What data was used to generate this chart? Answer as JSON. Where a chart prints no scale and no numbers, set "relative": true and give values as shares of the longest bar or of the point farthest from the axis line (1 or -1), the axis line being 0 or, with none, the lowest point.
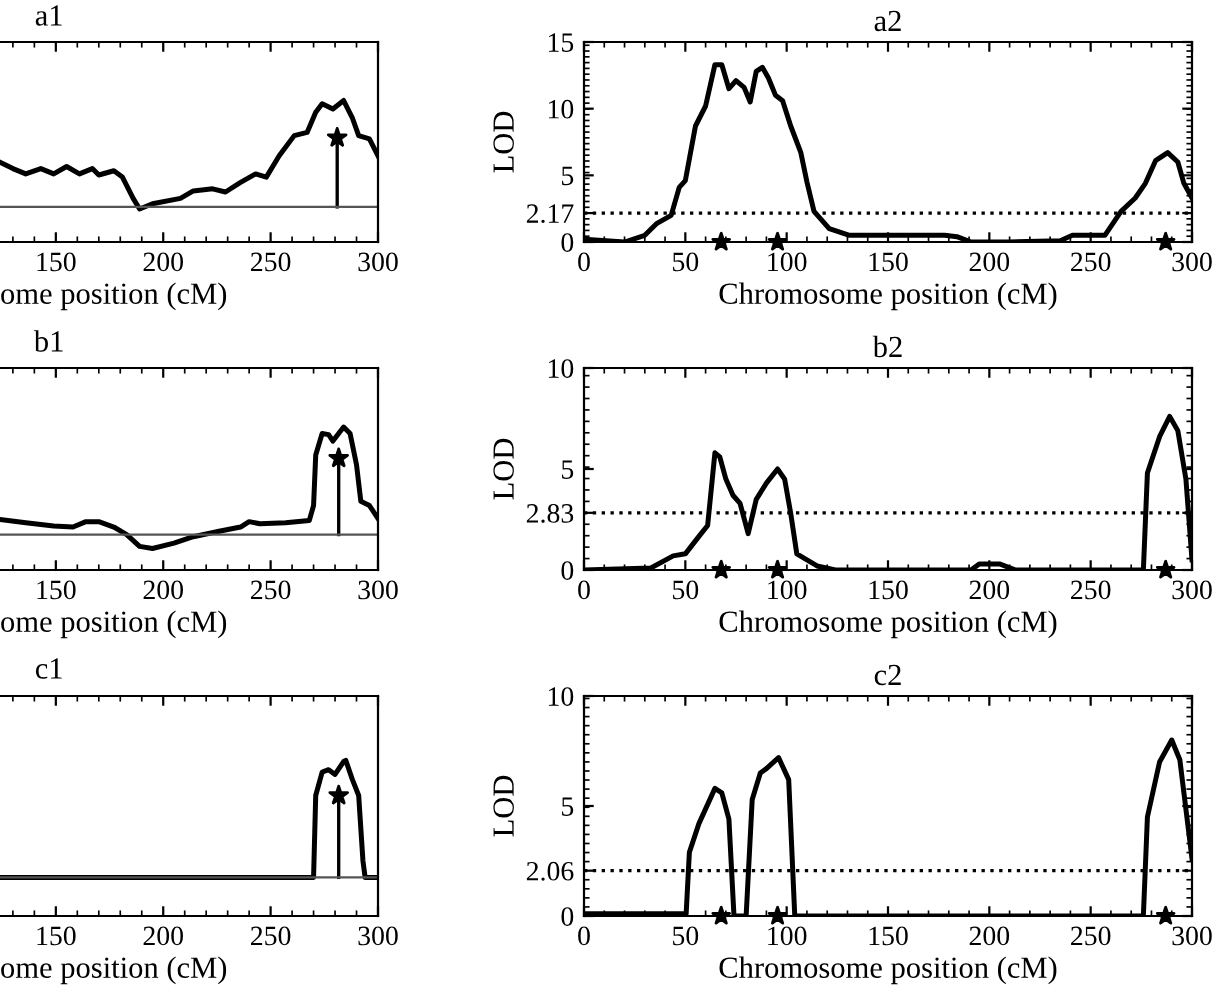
{
  "chart_data": [
    {
      "type": "line",
      "title": "a1",
      "xlabel": "ome position (cM)",
      "relative": true,
      "xlim": [
        124,
        300
      ],
      "xticks": [
        150,
        200,
        250,
        300
      ],
      "tick_labels": "x",
      "series": [
        {
          "type": "line",
          "color": "#000000",
          "x": [
            124,
            130,
            136,
            143,
            149,
            155,
            161,
            167,
            170,
            177,
            181,
            186,
            189,
            195,
            208,
            214,
            223,
            229,
            236,
            243,
            248,
            254,
            261,
            267,
            271,
            274,
            279,
            284,
            288,
            291,
            296,
            300
          ],
          "values": [
            0.42,
            0.36,
            0.31,
            0.36,
            0.31,
            0.38,
            0.31,
            0.36,
            0.3,
            0.34,
            0.28,
            0.08,
            -0.02,
            0.03,
            0.08,
            0.15,
            0.17,
            0.14,
            0.23,
            0.31,
            0.28,
            0.48,
            0.67,
            0.7,
            0.89,
            0.97,
            0.92,
            1.0,
            0.84,
            0.67,
            0.64,
            0.48
          ]
        },
        {
          "type": "lollipop",
          "color": "#000000",
          "marker": "star",
          "x": [
            281
          ],
          "values": [
            0.65
          ]
        }
      ]
    },
    {
      "type": "line",
      "title": "a2",
      "xlabel": "Chromosome position (cM)",
      "ylabel": "LOD",
      "xlim": [
        0,
        300
      ],
      "xticks": [
        0,
        50,
        100,
        150,
        200,
        250,
        300
      ],
      "ylim": [
        0,
        15
      ],
      "yticks": [
        0,
        2.17,
        5,
        10,
        15
      ],
      "ref_lines": [
        {
          "axis": "y",
          "value": 2.17,
          "line_style": "dotted",
          "color": "#000000"
        }
      ],
      "series": [
        {
          "type": "line",
          "color": "#000000",
          "x": [
            0,
            20,
            30,
            36,
            43,
            47,
            50,
            55,
            60,
            64.6,
            68,
            71.5,
            75,
            79,
            82,
            85,
            88,
            91,
            94.5,
            98,
            102,
            107,
            110,
            113.5,
            121,
            131,
            146,
            162,
            178,
            184,
            191,
            210,
            235,
            241,
            257,
            265,
            272,
            277,
            282,
            288,
            293,
            296,
            300
          ],
          "values": [
            0.2,
            0,
            0.5,
            1.4,
            2.0,
            4.1,
            4.6,
            8.7,
            10.2,
            13.3,
            13.3,
            11.5,
            12.1,
            11.6,
            10.5,
            12.8,
            13.1,
            12.3,
            11.0,
            10.6,
            8.7,
            6.7,
            4.5,
            2.3,
            1.0,
            0.5,
            0.5,
            0.5,
            0.5,
            0.4,
            0,
            0,
            0.1,
            0.5,
            0.5,
            2.3,
            3.3,
            4.4,
            6.1,
            6.7,
            6.0,
            4.4,
            3.3
          ]
        },
        {
          "type": "scatter",
          "color": "#000000",
          "marker": "star",
          "x": [
            67.7,
            95.5,
            287
          ],
          "values": [
            0,
            0,
            0
          ]
        }
      ]
    },
    {
      "type": "line",
      "title": "b1",
      "xlabel": "ome position (cM)",
      "relative": true,
      "xlim": [
        124,
        300
      ],
      "xticks": [
        150,
        200,
        250,
        300
      ],
      "tick_labels": "x",
      "series": [
        {
          "type": "line",
          "color": "#000000",
          "x": [
            124,
            136,
            149,
            158,
            164,
            170,
            177,
            183,
            189,
            195,
            205,
            214,
            226,
            236,
            240,
            245,
            257,
            268,
            270,
            271,
            274,
            277,
            279,
            284,
            287,
            290,
            292,
            296,
            300
          ],
          "values": [
            0.14,
            0.11,
            0.08,
            0.07,
            0.12,
            0.12,
            0.07,
            0,
            -0.11,
            -0.13,
            -0.08,
            -0.02,
            0.03,
            0.07,
            0.12,
            0.1,
            0.11,
            0.13,
            0.27,
            0.74,
            0.94,
            0.93,
            0.87,
            1.0,
            0.94,
            0.65,
            0.31,
            0.27,
            0.15
          ]
        },
        {
          "type": "lollipop",
          "color": "#000000",
          "marker": "star",
          "x": [
            281.7
          ],
          "values": [
            0.71
          ]
        }
      ]
    },
    {
      "type": "line",
      "title": "b2",
      "xlabel": "Chromosome position (cM)",
      "ylabel": "LOD",
      "xlim": [
        0,
        300
      ],
      "xticks": [
        0,
        50,
        100,
        150,
        200,
        250,
        300
      ],
      "ylim": [
        0,
        10
      ],
      "yticks": [
        0,
        2.83,
        5,
        10
      ],
      "ref_lines": [
        {
          "axis": "y",
          "value": 2.83,
          "line_style": "dotted",
          "color": "#000000"
        }
      ],
      "series": [
        {
          "type": "line",
          "color": "#000000",
          "x": [
            0,
            33,
            44,
            50,
            57,
            61,
            64.6,
            67,
            70,
            73.5,
            77,
            81,
            85,
            90,
            95.5,
            99,
            102,
            105,
            115,
            124,
            191,
            195,
            205,
            213,
            276,
            278,
            284,
            289,
            293,
            297,
            300
          ],
          "values": [
            0,
            0.1,
            0.7,
            0.8,
            1.7,
            2.2,
            5.8,
            5.6,
            4.5,
            3.7,
            3.3,
            1.8,
            3.5,
            4.3,
            5.0,
            4.5,
            2.8,
            0.8,
            0.2,
            0,
            0,
            0.3,
            0.3,
            0,
            0,
            4.8,
            6.6,
            7.6,
            6.9,
            4.5,
            0.5
          ]
        },
        {
          "type": "scatter",
          "color": "#000000",
          "marker": "star",
          "x": [
            67.7,
            95.5,
            287
          ],
          "values": [
            0,
            0,
            0
          ]
        }
      ]
    },
    {
      "type": "line",
      "title": "c1",
      "xlabel": "ome position (cM)",
      "relative": true,
      "xlim": [
        124,
        300
      ],
      "xticks": [
        150,
        200,
        250,
        300
      ],
      "tick_labels": "x",
      "series": [
        {
          "type": "line",
          "color": "#000000",
          "x": [
            124,
            268,
            270,
            271,
            274,
            277,
            280,
            284,
            285,
            288,
            291,
            293,
            294,
            300
          ],
          "values": [
            0,
            0,
            0,
            0.7,
            0.9,
            0.92,
            0.88,
            0.99,
            1.0,
            0.84,
            0.7,
            0.14,
            0,
            0
          ]
        },
        {
          "type": "lollipop",
          "color": "#000000",
          "marker": "star",
          "x": [
            281.7
          ],
          "values": [
            0.7
          ]
        }
      ]
    },
    {
      "type": "line",
      "title": "c2",
      "xlabel": "Chromosome position (cM)",
      "ylabel": "LOD",
      "xlim": [
        0,
        300
      ],
      "xticks": [
        0,
        50,
        100,
        150,
        200,
        250,
        300
      ],
      "ylim": [
        0,
        10
      ],
      "yticks": [
        0,
        2.06,
        5,
        10
      ],
      "ref_lines": [
        {
          "axis": "y",
          "value": 2.06,
          "line_style": "dotted",
          "color": "#000000"
        }
      ],
      "series": [
        {
          "type": "line",
          "color": "#000000",
          "x": [
            0,
            50.4,
            52,
            56.7,
            64.6,
            68,
            71.5,
            74,
            80,
            83,
            87,
            90,
            96,
            101,
            104,
            276,
            278,
            284,
            290,
            294,
            298,
            300
          ],
          "values": [
            0.1,
            0.1,
            2.9,
            4.2,
            5.8,
            5.6,
            4.4,
            0,
            0,
            5.3,
            6.5,
            6.7,
            7.2,
            6.2,
            0,
            0,
            4.5,
            7.0,
            8.0,
            7.1,
            4.1,
            2.6
          ]
        },
        {
          "type": "scatter",
          "color": "#000000",
          "marker": "star",
          "x": [
            67.7,
            95.5,
            287
          ],
          "values": [
            0,
            0,
            0
          ]
        }
      ]
    }
  ]
}
